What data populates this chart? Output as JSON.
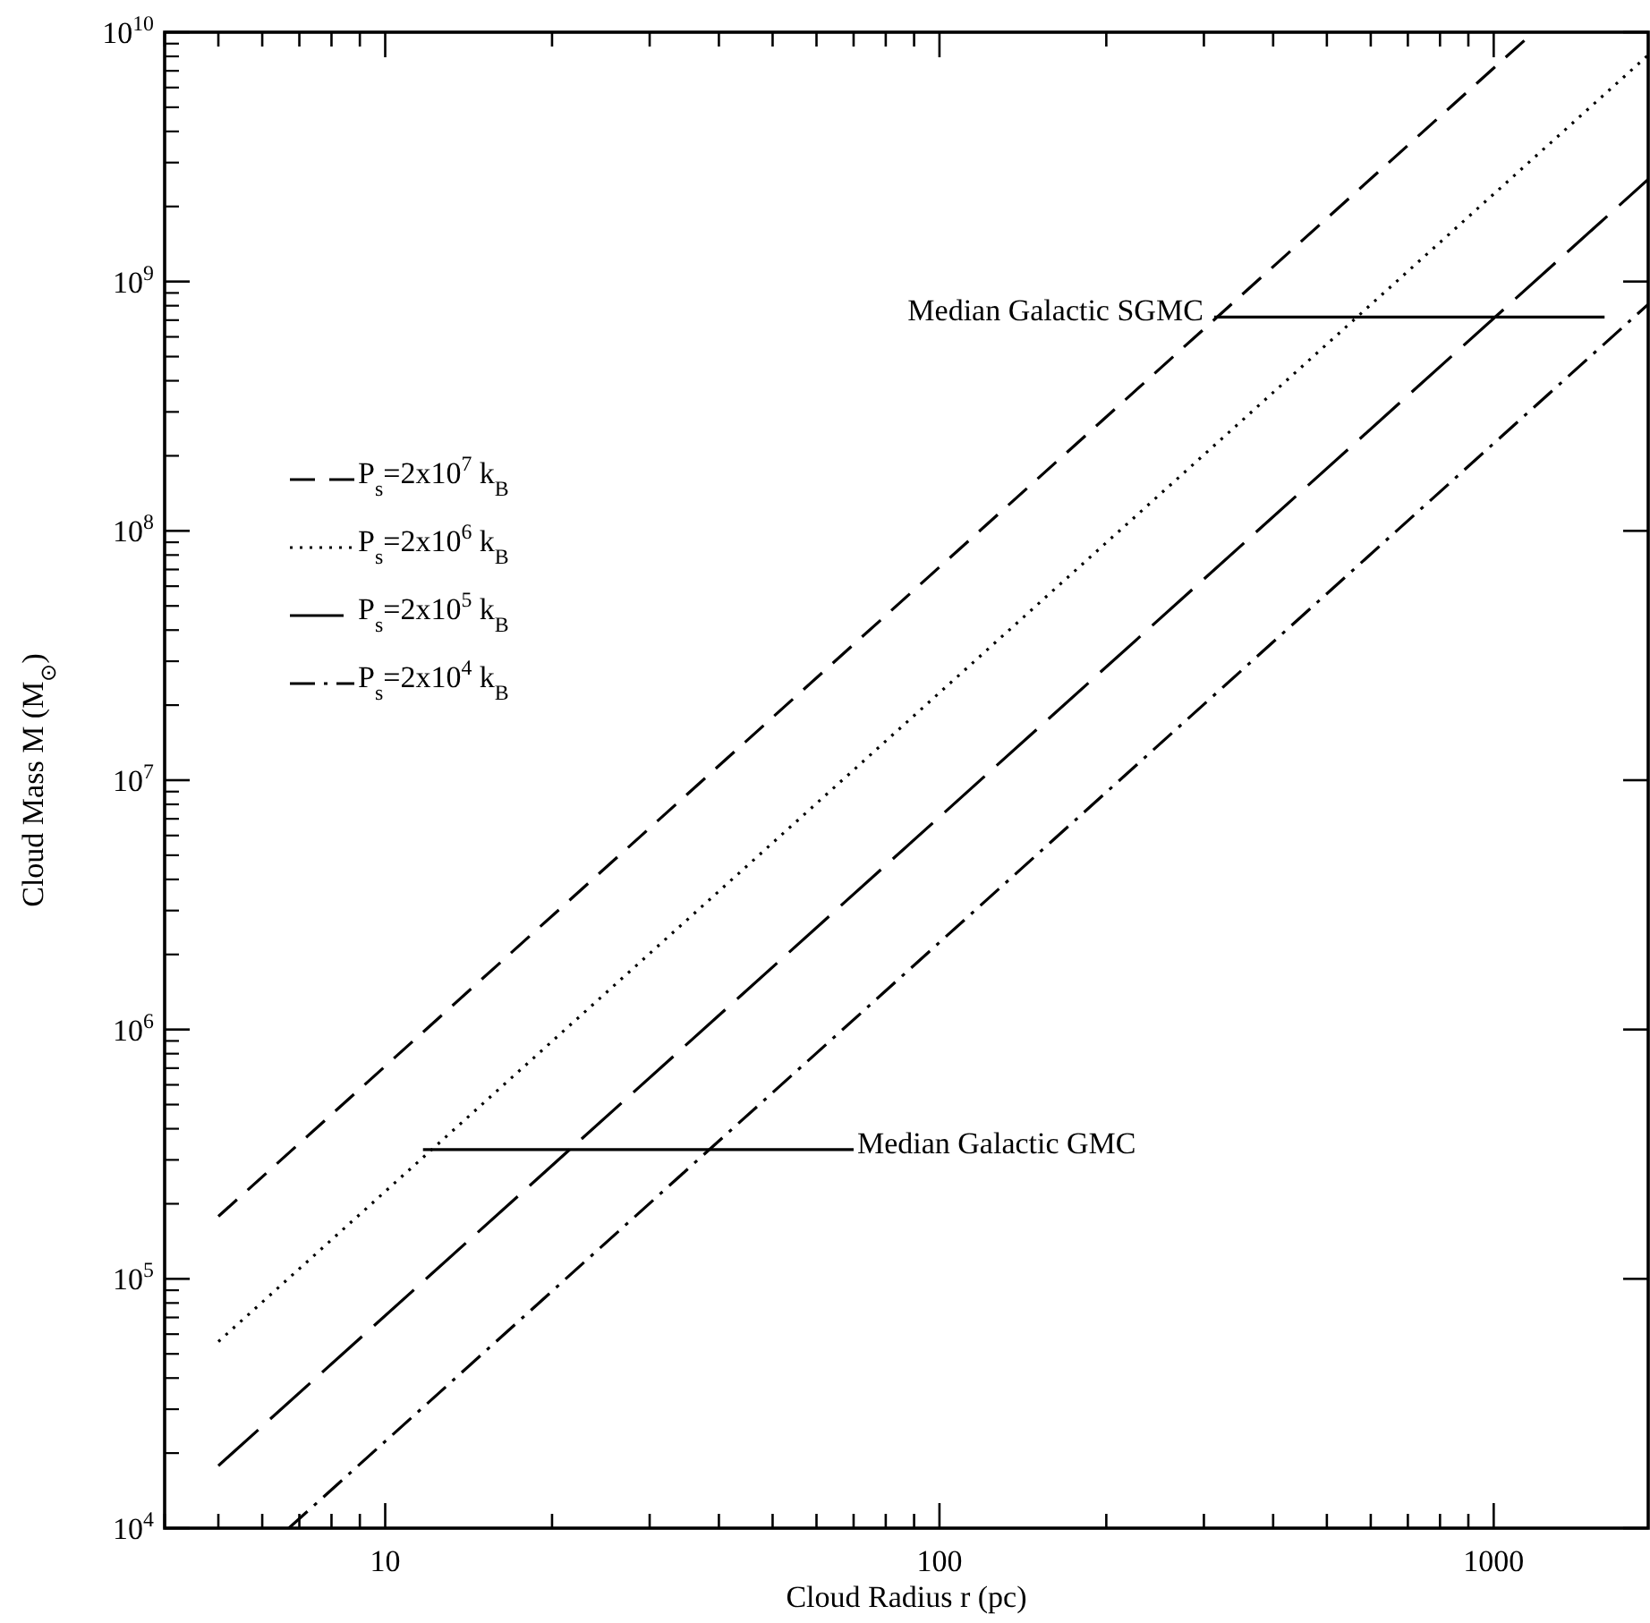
{
  "chart_data": {
    "type": "line",
    "xlabel": "Cloud Radius r (pc)",
    "ylabel": "Cloud Mass M (M$_{⊙}$)",
    "log": "xy",
    "grid": false,
    "legend": "top left",
    "marker": "none",
    "xlim": [
      4,
      1900
    ],
    "ylim": [
      10000,
      10000000000
    ],
    "xticks": [
      {
        "value": 4,
        "label": null
      },
      {
        "value": 5,
        "label": null
      },
      {
        "value": 6,
        "label": null
      },
      {
        "value": 7,
        "label": null
      },
      {
        "value": 8,
        "label": null
      },
      {
        "value": 9,
        "label": null
      },
      10,
      {
        "value": 20,
        "label": null
      },
      {
        "value": 30,
        "label": null
      },
      {
        "value": 40,
        "label": null
      },
      {
        "value": 50,
        "label": null
      },
      {
        "value": 60,
        "label": null
      },
      {
        "value": 70,
        "label": null
      },
      {
        "value": 80,
        "label": null
      },
      {
        "value": 90,
        "label": null
      },
      100,
      {
        "value": 200,
        "label": null
      },
      {
        "value": 300,
        "label": null
      },
      {
        "value": 400,
        "label": null
      },
      {
        "value": 500,
        "label": null
      },
      {
        "value": 600,
        "label": null
      },
      {
        "value": 700,
        "label": null
      },
      {
        "value": 800,
        "label": null
      },
      {
        "value": 900,
        "label": null
      },
      1000
    ],
    "yticks": [
      {
        "value": 10000,
        "label": "10$^{4}$"
      },
      {
        "value": 100000,
        "label": "10$^{5}$"
      },
      {
        "value": 1000000,
        "label": "10$^{6}$"
      },
      {
        "value": 10000000,
        "label": "10$^{7}$"
      },
      {
        "value": 100000000,
        "label": "10$^{8}$"
      },
      {
        "value": 1000000000,
        "label": "10$^{9}$"
      },
      {
        "value": 10000000000,
        "label": "10$^{10}$"
      }
    ],
    "series": [
      {
        "name": "P$_{s}$=2x10$^{7}$ k$_{B}$",
        "color": "#000000",
        "line_style": "dashed",
        "x": [
          5,
          1180
        ],
        "values": [
          178000,
          10000000000
        ]
      },
      {
        "name": "P$_{s}$=2x10$^{6}$ k$_{B}$",
        "color": "#000000",
        "line_style": "dotted",
        "x": [
          5,
          1900
        ],
        "values": [
          56000,
          8100000000
        ]
      },
      {
        "name": "P$_{s}$=2x10$^{5}$ k$_{B}$",
        "color": "#000000",
        "line_style": "longdash",
        "x": [
          5,
          1900
        ],
        "values": [
          17800,
          2570000000
        ]
      },
      {
        "name": "P$_{s}$=2x10$^{4}$ k$_{B}$",
        "color": "#000000",
        "line_style": "dashdot",
        "x": [
          6.7,
          1900
        ],
        "values": [
          10000,
          810000000
        ]
      },
      {
        "color": "#000000",
        "line_style": "solid",
        "x": [
          11.7,
          70
        ],
        "values": [
          330000,
          330000
        ]
      },
      {
        "color": "#000000",
        "line_style": "solid",
        "x": [
          313,
          1585
        ],
        "values": [
          720000000,
          720000000
        ]
      }
    ],
    "annotations": [
      {
        "text": "Median Galactic GMC",
        "x": 70,
        "y": 330000
      },
      {
        "text": "Median Galactic SGMC",
        "x": 313,
        "y": 720000000
      }
    ]
  }
}
